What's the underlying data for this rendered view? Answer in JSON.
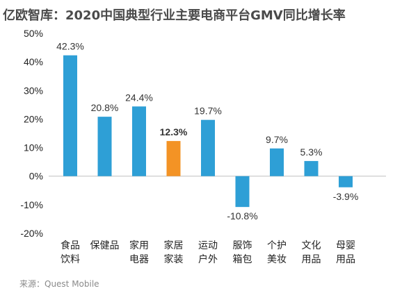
{
  "chart_data": {
    "type": "bar",
    "title": "亿欧智库：2020中国典型行业主要电商平台GMV同比增长率",
    "categories": [
      [
        "食品",
        "饮料"
      ],
      [
        "保健品"
      ],
      [
        "家用",
        "电器"
      ],
      [
        "家居",
        "家装"
      ],
      [
        "运动",
        "户外"
      ],
      [
        "服饰",
        "箱包"
      ],
      [
        "个护",
        "美妆"
      ],
      [
        "文化",
        "用品"
      ],
      [
        "母婴",
        "用品"
      ]
    ],
    "values": [
      42.3,
      20.8,
      24.4,
      12.3,
      19.7,
      -10.8,
      9.7,
      5.3,
      -3.9
    ],
    "data_labels": [
      "42.3%",
      "20.8%",
      "24.4%",
      "12.3%",
      "19.7%",
      "-10.8%",
      "9.7%",
      "5.3%",
      "-3.9%"
    ],
    "highlight_index": 3,
    "ylim": [
      -20,
      50
    ],
    "yticks": [
      -20,
      -10,
      0,
      10,
      20,
      30,
      40,
      50
    ],
    "ytick_labels": [
      "-20%",
      "-10%",
      "0%",
      "10%",
      "20%",
      "30%",
      "40%",
      "50%"
    ],
    "xlabel": "",
    "ylabel": "",
    "grid": false,
    "colors": {
      "bar": "#2e9fd6",
      "highlight": "#f39325",
      "axis": "#bfbfbf"
    }
  },
  "source": "来源：Quest Mobile"
}
